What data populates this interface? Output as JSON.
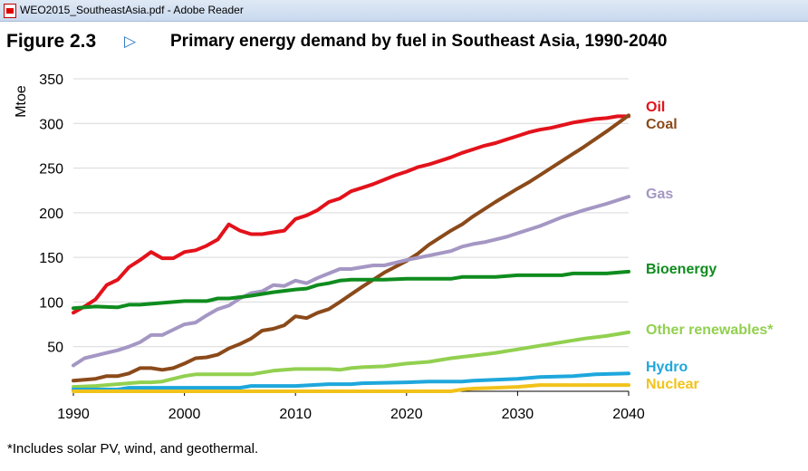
{
  "window": {
    "title": "WEO2015_SoutheastAsia.pdf - Adobe Reader",
    "icon": "pdf-document-icon"
  },
  "figure": {
    "number": "Figure 2.3",
    "arrow_icon": "triangle-right-icon",
    "title": "Primary energy demand by fuel in Southeast Asia, 1990-2040"
  },
  "footnote": "*Includes solar PV, wind, and geothermal.",
  "chart_data": {
    "type": "line",
    "title": "Primary energy demand by fuel in Southeast Asia, 1990-2040",
    "xlabel": "",
    "ylabel": "Mtoe",
    "xlim": [
      1990,
      2040
    ],
    "ylim": [
      0,
      350
    ],
    "x_ticks": [
      1990,
      2000,
      2010,
      2020,
      2030,
      2040
    ],
    "y_ticks": [
      50,
      100,
      150,
      200,
      250,
      300,
      350
    ],
    "grid": "horizontal",
    "legend": "labels at right end of lines",
    "series": [
      {
        "name": "Oil",
        "color": "#e3121b",
        "x": [
          1990,
          1991,
          1992,
          1993,
          1994,
          1995,
          1996,
          1997,
          1998,
          1999,
          2000,
          2001,
          2002,
          2003,
          2004,
          2005,
          2006,
          2007,
          2008,
          2009,
          2010,
          2011,
          2012,
          2013,
          2014,
          2015,
          2016,
          2017,
          2018,
          2019,
          2020,
          2021,
          2022,
          2023,
          2024,
          2025,
          2026,
          2027,
          2028,
          2029,
          2030,
          2031,
          2032,
          2033,
          2034,
          2035,
          2036,
          2037,
          2038,
          2039,
          2040
        ],
        "values": [
          88,
          95,
          103,
          119,
          125,
          139,
          147,
          156,
          149,
          149,
          156,
          158,
          163,
          170,
          187,
          180,
          176,
          176,
          178,
          180,
          193,
          197,
          203,
          212,
          216,
          224,
          228,
          232,
          237,
          242,
          246,
          251,
          254,
          258,
          262,
          267,
          271,
          275,
          278,
          282,
          286,
          290,
          293,
          295,
          298,
          301,
          303,
          305,
          306,
          308,
          308
        ]
      },
      {
        "name": "Coal",
        "color": "#8b4a1a",
        "x": [
          1990,
          1992,
          1993,
          1994,
          1995,
          1996,
          1997,
          1998,
          1999,
          2000,
          2001,
          2002,
          2003,
          2004,
          2005,
          2006,
          2007,
          2008,
          2009,
          2010,
          2011,
          2012,
          2013,
          2014,
          2016,
          2018,
          2020,
          2021,
          2022,
          2024,
          2025,
          2026,
          2028,
          2030,
          2031,
          2032,
          2034,
          2036,
          2038,
          2040
        ],
        "values": [
          12,
          14,
          17,
          17,
          20,
          26,
          26,
          24,
          26,
          31,
          37,
          38,
          41,
          48,
          53,
          59,
          68,
          70,
          74,
          84,
          82,
          88,
          92,
          100,
          117,
          133,
          146,
          154,
          164,
          180,
          187,
          196,
          212,
          227,
          234,
          242,
          258,
          274,
          291,
          309
        ]
      },
      {
        "name": "Gas",
        "color": "#a597c4",
        "x": [
          1990,
          1991,
          1992,
          1993,
          1994,
          1995,
          1996,
          1997,
          1998,
          1999,
          2000,
          2001,
          2002,
          2003,
          2004,
          2005,
          2006,
          2007,
          2008,
          2009,
          2010,
          2011,
          2012,
          2013,
          2014,
          2015,
          2016,
          2017,
          2018,
          2019,
          2020,
          2022,
          2024,
          2025,
          2026,
          2027,
          2028,
          2029,
          2030,
          2032,
          2034,
          2036,
          2038,
          2040
        ],
        "values": [
          29,
          37,
          40,
          43,
          46,
          50,
          55,
          63,
          63,
          69,
          75,
          77,
          85,
          92,
          96,
          104,
          110,
          112,
          119,
          118,
          124,
          121,
          127,
          132,
          137,
          137,
          139,
          141,
          141,
          144,
          147,
          152,
          157,
          162,
          165,
          167,
          170,
          173,
          177,
          185,
          195,
          203,
          210,
          218
        ]
      },
      {
        "name": "Bioenergy",
        "color": "#0f8c1e",
        "x": [
          1990,
          1992,
          1994,
          1995,
          1996,
          1998,
          2000,
          2002,
          2003,
          2004,
          2006,
          2008,
          2010,
          2011,
          2012,
          2013,
          2014,
          2015,
          2016,
          2018,
          2020,
          2022,
          2024,
          2025,
          2026,
          2028,
          2030,
          2032,
          2034,
          2035,
          2036,
          2038,
          2040
        ],
        "values": [
          93,
          95,
          94,
          97,
          97,
          99,
          101,
          101,
          104,
          104,
          107,
          111,
          114,
          115,
          119,
          121,
          124,
          125,
          125,
          125,
          126,
          126,
          126,
          128,
          128,
          128,
          130,
          130,
          130,
          132,
          132,
          132,
          134
        ]
      },
      {
        "name": "Other renewables*",
        "color": "#92d050",
        "x": [
          1990,
          1992,
          1994,
          1995,
          1996,
          1997,
          1998,
          1999,
          2000,
          2001,
          2002,
          2003,
          2004,
          2005,
          2006,
          2007,
          2008,
          2009,
          2010,
          2012,
          2013,
          2014,
          2015,
          2016,
          2018,
          2020,
          2022,
          2024,
          2026,
          2028,
          2030,
          2032,
          2034,
          2036,
          2038,
          2040
        ],
        "values": [
          5,
          6,
          8,
          9,
          10,
          10,
          11,
          14,
          17,
          19,
          19,
          19,
          19,
          19,
          19,
          21,
          23,
          24,
          25,
          25,
          25,
          24,
          26,
          27,
          28,
          31,
          33,
          37,
          40,
          43,
          47,
          51,
          55,
          59,
          62,
          66
        ]
      },
      {
        "name": "Hydro",
        "color": "#1ea7dc",
        "x": [
          1990,
          1994,
          1995,
          2000,
          2005,
          2006,
          2010,
          2013,
          2015,
          2016,
          2020,
          2022,
          2025,
          2026,
          2028,
          2030,
          2032,
          2035,
          2036,
          2037,
          2040
        ],
        "values": [
          2,
          2,
          4,
          4,
          4,
          6,
          6,
          8,
          8,
          9,
          10,
          11,
          11,
          12,
          13,
          14,
          16,
          17,
          18,
          19,
          20
        ]
      },
      {
        "name": "Nuclear",
        "color": "#f2c21b",
        "x": [
          1990,
          2024,
          2025,
          2026,
          2028,
          2030,
          2031,
          2032,
          2035,
          2040
        ],
        "values": [
          0,
          0,
          2,
          3,
          4,
          5,
          6,
          7,
          7,
          7
        ]
      }
    ]
  }
}
